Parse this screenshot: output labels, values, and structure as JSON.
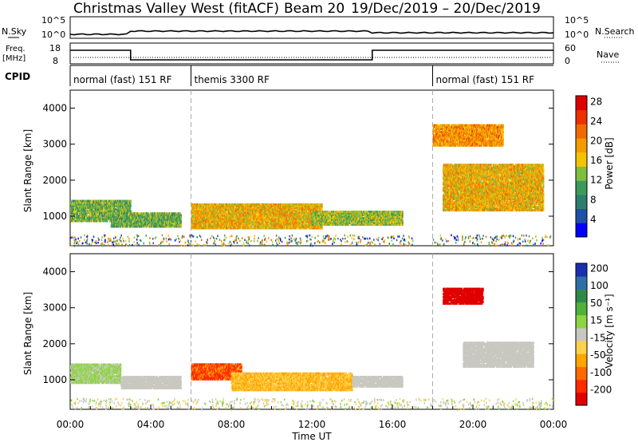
{
  "header": {
    "station": "Christmas Valley West (fitACF)",
    "beam": "Beam 20",
    "date_range": "19/Dec/2019 – 20/Dec/2019"
  },
  "noise_panel": {
    "left_label": "N.Sky",
    "right_label": "N.Search",
    "left_ticks": [
      "10^5",
      "10^0"
    ],
    "right_ticks": [
      "10^5",
      "10^0"
    ]
  },
  "freq_panel": {
    "left_label_1": "Freq.",
    "left_label_2": "[MHz]",
    "right_label": "Nave",
    "left_ticks": [
      "18",
      "8"
    ],
    "right_ticks": [
      "60",
      "0"
    ],
    "freq_segments": [
      {
        "start": 0.0,
        "end": 3.0,
        "level": "high"
      },
      {
        "start": 3.0,
        "end": 15.0,
        "level": "low"
      },
      {
        "start": 15.0,
        "end": 24.0,
        "level": "high"
      }
    ]
  },
  "cpid": {
    "label": "CPID",
    "modes": [
      {
        "text": "normal (fast) 151 RF",
        "start_hour": 0
      },
      {
        "text": "themis 3300 RF",
        "start_hour": 6
      },
      {
        "text": "normal (fast) 151 RF",
        "start_hour": 18
      }
    ]
  },
  "chart_data": [
    {
      "type": "heatmap",
      "name": "power",
      "ylabel": "Slant Range [km]",
      "xlabel": "Time UT",
      "xlim": [
        0,
        24
      ],
      "ylim": [
        180,
        4500
      ],
      "yticks": [
        "1000",
        "2000",
        "3000",
        "4000"
      ],
      "colorbar": {
        "label": "Power [dB]",
        "ticks": [
          "4",
          "8",
          "12",
          "16",
          "20",
          "24",
          "28"
        ],
        "colors": [
          "#0000ff",
          "#1f4fa8",
          "#2e7d6e",
          "#3c9b5a",
          "#7fbf3f",
          "#f5c400",
          "#f59b00",
          "#f06a00",
          "#ee3000",
          "#dd0000"
        ]
      },
      "regions": [
        {
          "t0": 0.0,
          "t1": 3.0,
          "r0": 900,
          "r1": 1500,
          "value": 14
        },
        {
          "t0": 2.0,
          "t1": 5.5,
          "r0": 750,
          "r1": 1150,
          "value": 14
        },
        {
          "t0": 6.0,
          "t1": 12.5,
          "r0": 700,
          "r1": 1400,
          "value": 20
        },
        {
          "t0": 12.0,
          "t1": 16.5,
          "r0": 800,
          "r1": 1200,
          "value": 16
        },
        {
          "t0": 18.5,
          "t1": 23.5,
          "r0": 1200,
          "r1": 2500,
          "value": 20
        },
        {
          "t0": 18.0,
          "t1": 21.5,
          "r0": 3000,
          "r1": 3600,
          "value": 22
        }
      ]
    },
    {
      "type": "heatmap",
      "name": "velocity",
      "ylabel": "Slant Range [km]",
      "xlabel": "Time UT",
      "xlim": [
        0,
        24
      ],
      "ylim": [
        180,
        4500
      ],
      "yticks": [
        "1000",
        "2000",
        "3000",
        "4000"
      ],
      "xticks": [
        "00:00",
        "04:00",
        "08:00",
        "12:00",
        "16:00",
        "20:00",
        "00:00"
      ],
      "colorbar": {
        "label": "Velocity [m s⁻¹]",
        "ticks": [
          "200",
          "100",
          "50",
          "15",
          "-15",
          "-50",
          "-100",
          "-200"
        ],
        "colors": [
          "#1a2fb0",
          "#2e6fa8",
          "#2f8a4a",
          "#4fb13a",
          "#8dd444",
          "#c8c8c0",
          "#ffd24a",
          "#ffa500",
          "#ff6a00",
          "#ff2a00",
          "#e00000"
        ]
      },
      "regions": [
        {
          "t0": 0.0,
          "t1": 2.5,
          "r0": 950,
          "r1": 1500,
          "value": 20
        },
        {
          "t0": 2.5,
          "t1": 5.5,
          "r0": 800,
          "r1": 1150,
          "value": 0
        },
        {
          "t0": 6.0,
          "t1": 8.5,
          "r0": 1050,
          "r1": 1500,
          "value": -80
        },
        {
          "t0": 8.0,
          "t1": 14.0,
          "r0": 750,
          "r1": 1250,
          "value": -40
        },
        {
          "t0": 14.0,
          "t1": 16.5,
          "r0": 850,
          "r1": 1150,
          "value": 0
        },
        {
          "t0": 19.5,
          "t1": 23.0,
          "r0": 1400,
          "r1": 2100,
          "value": 0
        },
        {
          "t0": 18.5,
          "t1": 20.5,
          "r0": 3150,
          "r1": 3600,
          "value": -200
        }
      ]
    }
  ],
  "xaxis_label": "Time UT",
  "xticks": [
    "00:00",
    "04:00",
    "08:00",
    "12:00",
    "16:00",
    "20:00",
    "00:00"
  ]
}
